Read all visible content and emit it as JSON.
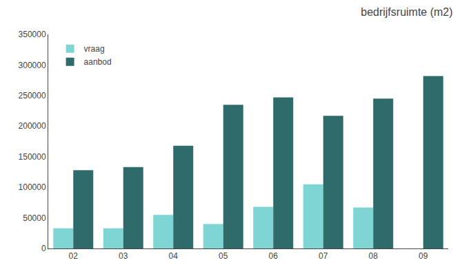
{
  "chart_data": {
    "type": "bar",
    "title": "bedrijfsruimte (m2)",
    "categories": [
      "02",
      "03",
      "04",
      "05",
      "06",
      "07",
      "08",
      "09"
    ],
    "series": [
      {
        "name": "vraag",
        "color": "#7fd4d4",
        "values": [
          33000,
          33000,
          55000,
          40000,
          68000,
          105000,
          67000,
          0
        ]
      },
      {
        "name": "aanbod",
        "color": "#2f6b6b",
        "values": [
          128000,
          133000,
          168000,
          235000,
          247000,
          217000,
          245000,
          282000
        ]
      }
    ],
    "ylim": [
      0,
      350000
    ],
    "yticks": [
      0,
      50000,
      100000,
      150000,
      200000,
      250000,
      300000,
      350000
    ],
    "grid": false,
    "legend": "upper left"
  }
}
